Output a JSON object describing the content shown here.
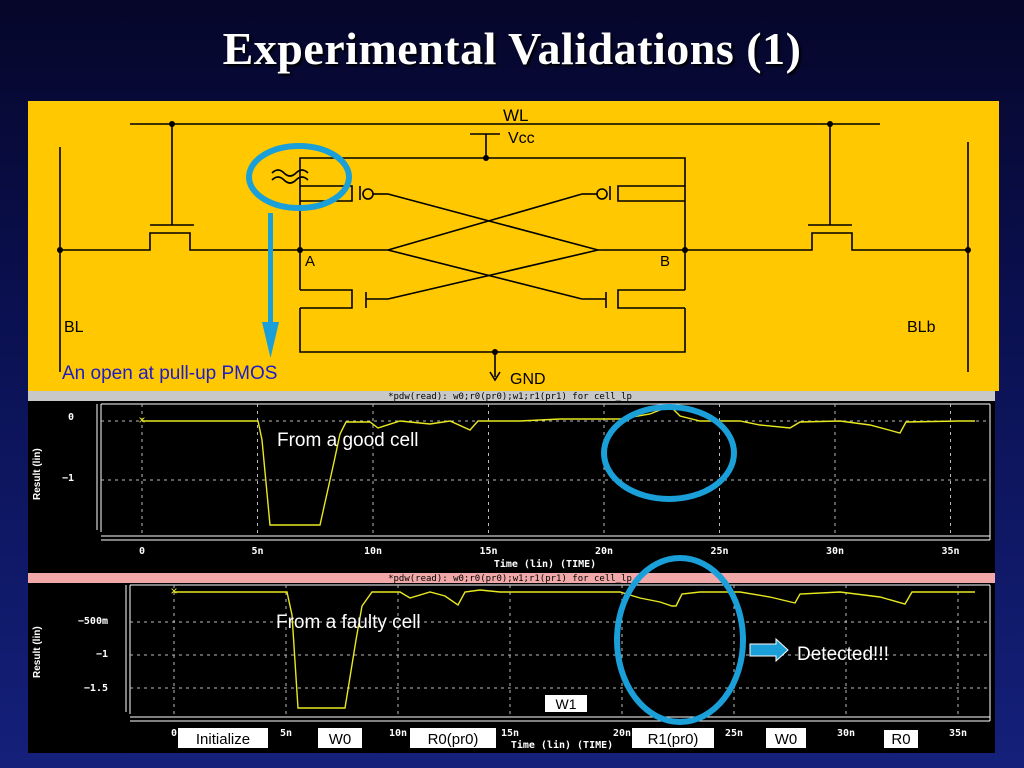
{
  "slide": {
    "title": "Experimental Validations (1)"
  },
  "circuit": {
    "wl": "WL",
    "vcc": "Vcc",
    "gnd": "GND",
    "bl": "BL",
    "blb": "BLb",
    "node_a": "A",
    "node_b": "B",
    "annotation": "An open at pull-up PMOS"
  },
  "plot_good": {
    "header": "*pdw(read): w0;r0(pr0);w1;r1(pr1) for cell_lp",
    "ylabel": "Result (lin)",
    "xlabel": "Time (lin) (TIME)",
    "yticks": [
      "0",
      "−1"
    ],
    "xticks": [
      "0",
      "5n",
      "10n",
      "15n",
      "20n",
      "25n",
      "30n",
      "35n"
    ],
    "annotation": "From a good cell",
    "line_color": "#e8e820"
  },
  "plot_faulty": {
    "header": "*pdw(read): w0;r0(pr0);w1;r1(pr1) for cell_lp",
    "ylabel": "Result (lin)",
    "xlabel": "Time (lin) (TIME)",
    "yticks": [
      "−500m",
      "−1",
      "−1.5"
    ],
    "xticks": [
      "0",
      "5n",
      "10n",
      "15n",
      "20n",
      "25n",
      "30n",
      "35n"
    ],
    "annotation": "From a faulty cell",
    "detected": "Detected!!!",
    "phases": [
      "Initialize",
      "W0",
      "R0(pr0)",
      "R1(pr0)",
      "W0",
      "R0"
    ],
    "w1_label": "W1",
    "line_color": "#e8e820"
  },
  "colors": {
    "circuit_bg": "#ffc800",
    "highlight": "#1a9fd8",
    "plot_bg": "#000000",
    "faulty_header": "#f0a8a8"
  }
}
